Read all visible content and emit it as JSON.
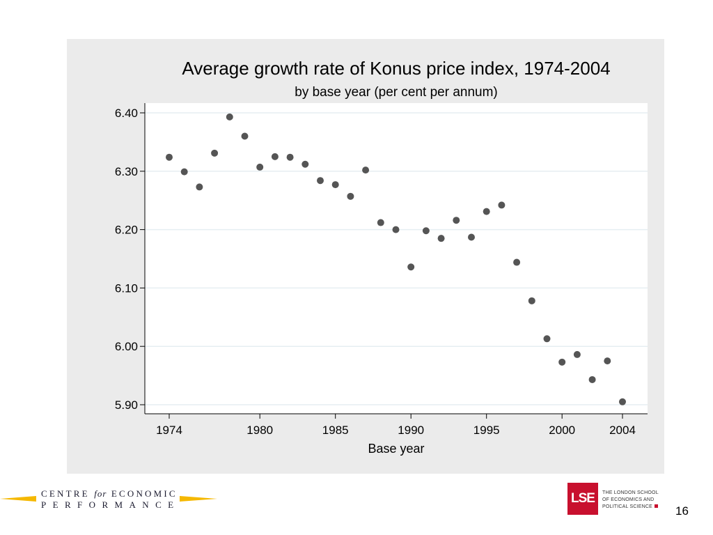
{
  "chart_data": {
    "type": "scatter",
    "title": "Average growth rate of Konus price index, 1974-2004",
    "subtitle": "by base year (per cent per annum)",
    "xlabel": "Base year",
    "ylabel": "",
    "x_ticks": [
      1974,
      1980,
      1985,
      1990,
      1995,
      2000,
      2004
    ],
    "y_ticks": [
      "6.40",
      "6.30",
      "6.20",
      "6.10",
      "6.00",
      "5.90"
    ],
    "xlim": [
      1974,
      2004
    ],
    "ylim": [
      5.9,
      6.4
    ],
    "grid": "horizontal",
    "marker_color": "#555555",
    "x": [
      1974,
      1975,
      1976,
      1977,
      1978,
      1979,
      1980,
      1981,
      1982,
      1983,
      1984,
      1985,
      1986,
      1987,
      1988,
      1989,
      1990,
      1991,
      1992,
      1993,
      1994,
      1995,
      1996,
      1997,
      1998,
      1999,
      2000,
      2001,
      2002,
      2003,
      2004
    ],
    "y": [
      6.324,
      6.299,
      6.273,
      6.331,
      6.393,
      6.36,
      6.307,
      6.325,
      6.324,
      6.312,
      6.284,
      6.277,
      6.257,
      6.302,
      6.212,
      6.2,
      6.136,
      6.198,
      6.185,
      6.216,
      6.187,
      6.231,
      6.242,
      6.144,
      6.078,
      6.013,
      5.973,
      5.986,
      5.943,
      5.975,
      5.905
    ]
  },
  "footer": {
    "cep_line1_a": "CENTRE",
    "cep_line1_for": "for",
    "cep_line1_b": "ECONOMIC",
    "cep_line2": "PERFORMANCE",
    "lse_mark": "LSE",
    "lse_line1": "THE LONDON SCHOOL",
    "lse_line2": "OF ECONOMICS AND",
    "lse_line3": "POLITICAL SCIENCE",
    "page_number": "16"
  },
  "colors": {
    "panel_bg": "#ebebeb",
    "plot_bg": "#ffffff",
    "grid": "#e6eef2",
    "cep_yellow": "#f5b800",
    "lse_red": "#c8102e"
  }
}
